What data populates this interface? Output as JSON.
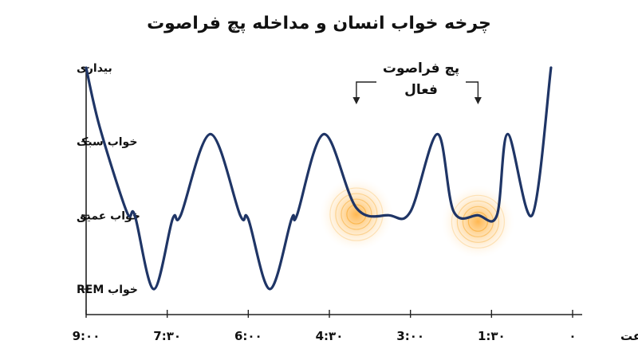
{
  "chart_data": {
    "type": "line",
    "title": "چرخه خواب انسان و مداخله پچ فراصوت",
    "xlabel": "ساعت",
    "x_ticks": [
      "9:۰۰",
      "7:۳۰",
      "6:۰۰",
      "4:۳۰",
      "3:۰۰",
      "1:۳۰",
      "۰"
    ],
    "x_range": [
      9,
      0
    ],
    "y_levels": [
      "بیداری",
      "خواب سبک",
      "خواب عمیق",
      "خواب REM"
    ],
    "series": [
      {
        "x": [
          9.0,
          8.75,
          8.25,
          8.1,
          7.75,
          7.4,
          7.25,
          6.7,
          6.15,
          6.0,
          5.6,
          5.2,
          5.1,
          4.6,
          4.0,
          3.4,
          3.0,
          2.5,
          2.2,
          1.75,
          1.4,
          1.2,
          0.75,
          0.4
        ],
        "y": [
          3,
          2.2,
          1.05,
          1.0,
          0.0,
          0.95,
          1.0,
          2.1,
          1.0,
          0.95,
          0.0,
          0.95,
          1.0,
          2.1,
          1.1,
          1.0,
          1.05,
          2.1,
          1.05,
          1.0,
          1.0,
          2.1,
          1.0,
          3.0
        ]
      }
    ],
    "annotation": {
      "label_line1": "پچ فراصوت",
      "label_line2": "فعال",
      "targets_x": [
        4.0,
        1.75
      ]
    },
    "colors": {
      "curve": "#1f3566",
      "glow": "#f7a21b"
    }
  }
}
